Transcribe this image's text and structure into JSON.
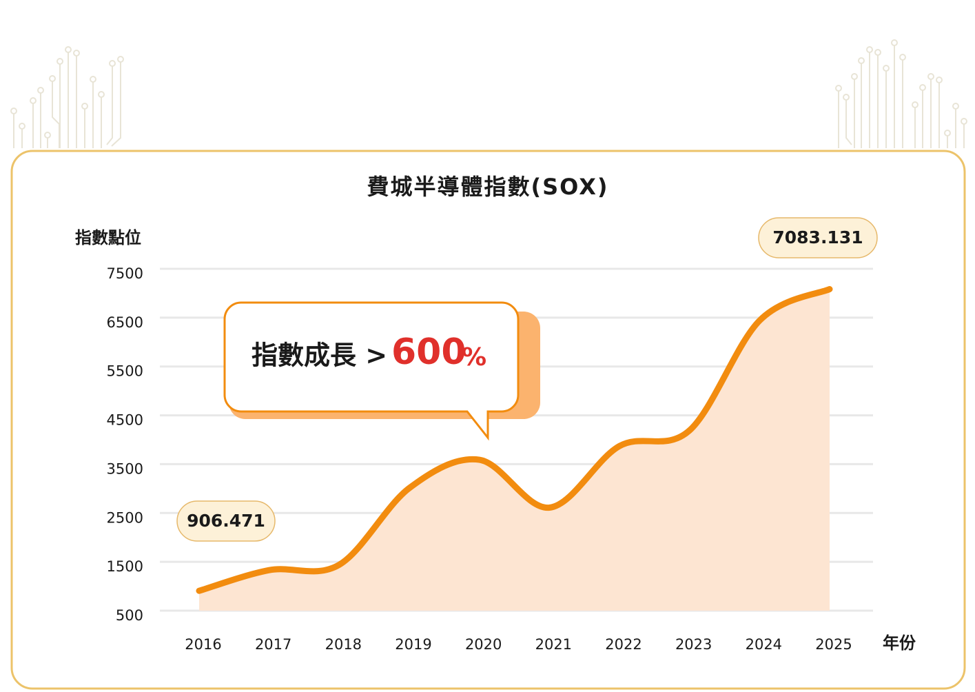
{
  "chart_data": {
    "type": "line",
    "title": "費城半導體指數(SOX)",
    "y_axis_title": "指數點位",
    "x_axis_title": "年份",
    "categories": [
      "2016",
      "2017",
      "2018",
      "2019",
      "2020",
      "2021",
      "2022",
      "2023",
      "2024",
      "2025"
    ],
    "values": [
      906.471,
      1330,
      1440,
      3010,
      3590,
      2610,
      3870,
      4190,
      6440,
      7083.131
    ],
    "color": "#f28c0f",
    "area_color": "#fde5d2",
    "ylim": [
      500,
      7500
    ],
    "yticks": [
      500,
      1500,
      2500,
      3500,
      4500,
      5500,
      6500,
      7500
    ],
    "grid": true,
    "callout": {
      "text": "指數成長 >",
      "highlight": "600",
      "unit": "%"
    }
  }
}
